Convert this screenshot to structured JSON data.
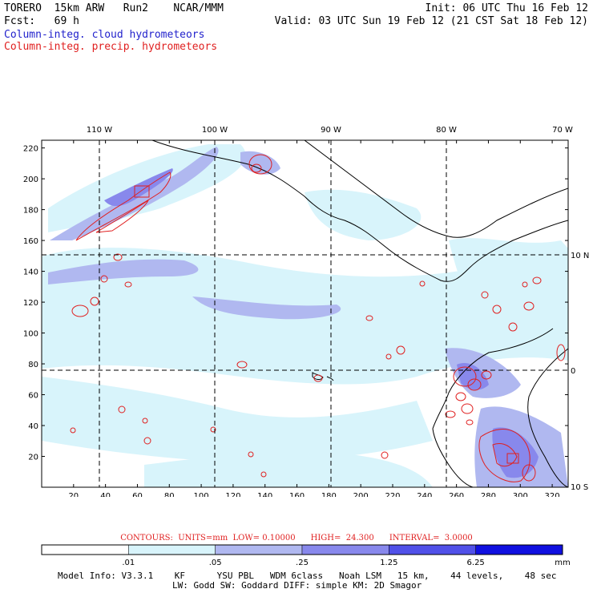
{
  "header": {
    "model_line": "TORERO  15km ARW   Run2    NCAR/MMM",
    "init": "Init: 06 UTC Thu 16 Feb 12",
    "fcst": "Fcst:   69 h",
    "valid": "Valid: 03 UTC Sun 19 Feb 12 (21 CST Sat 18 Feb 12)",
    "field_cloud": "Column-integ. cloud hydrometeors",
    "field_precip": "Column-integ. precip. hydrometeors"
  },
  "map": {
    "x_ticks": [
      "20",
      "40",
      "60",
      "80",
      "100",
      "120",
      "140",
      "160",
      "180",
      "200",
      "220",
      "240",
      "260",
      "280",
      "300",
      "320"
    ],
    "y_ticks": [
      "20",
      "40",
      "60",
      "80",
      "100",
      "120",
      "140",
      "160",
      "180",
      "200",
      "220"
    ],
    "lon_labels": [
      "110 W",
      "100 W",
      "90 W",
      "80 W",
      "70 W"
    ],
    "lat_labels": [
      "10 N",
      "0",
      "10 S"
    ]
  },
  "contours_text": "CONTOURS:  UNITS=mm  LOW= 0.10000      HIGH=  24.300      INTERVAL=  3.0000",
  "colorbar": {
    "labels": [
      ".01",
      ".05",
      ".25",
      "1.25",
      "6.25"
    ],
    "units": "mm",
    "colors": [
      "#ffffff",
      "#d8f4fb",
      "#b0b8f0",
      "#8888ec",
      "#5050e8",
      "#1010e0"
    ]
  },
  "model_info": {
    "line1": "Model Info: V3.3.1    KF      YSU PBL   WDM 6class   Noah LSM   15 km,    44 levels,    48 sec",
    "line2": "LW: Godd SW: Goddard DIFF: simple KM: 2D Smagor"
  },
  "colors": {
    "cloud_light": "#d8f4fb",
    "cloud_mid": "#b0b8f0",
    "cloud_dark": "#8888ec",
    "precip_contour": "#e02020",
    "coast": "#000000"
  }
}
